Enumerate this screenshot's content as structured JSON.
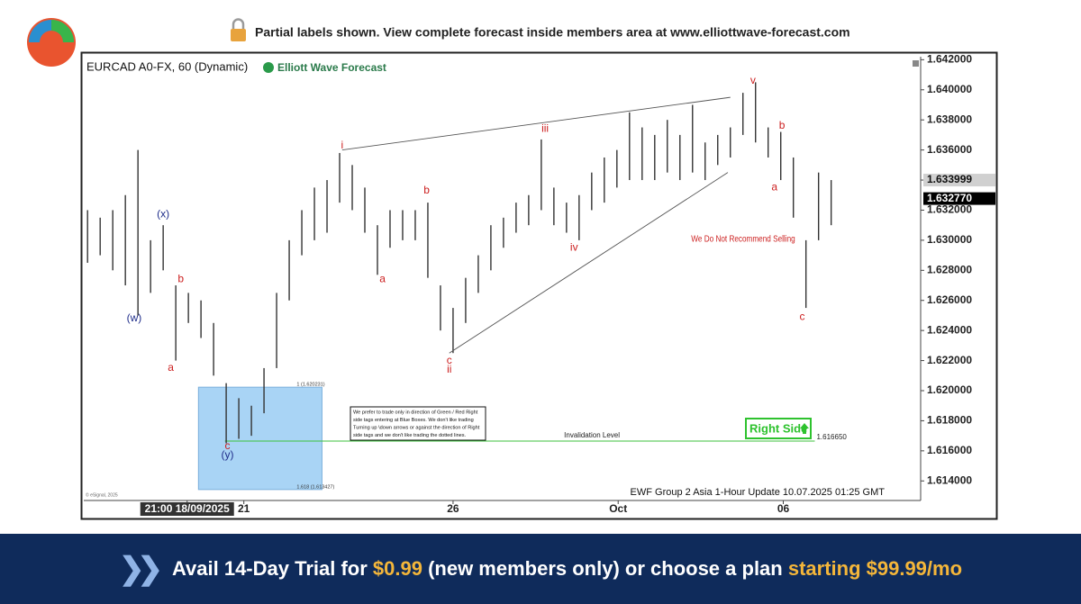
{
  "header": {
    "notice": "Partial labels shown. View complete forecast inside members area at www.elliottwave-forecast.com"
  },
  "chart_data": {
    "type": "hlbar",
    "title": "EURCAD A0-FX, 60 (Dynamic)",
    "brand": "Elliott Wave Forecast",
    "copyright": "© eSignal, 2025",
    "footer": "EWF Group 2 Asia 1-Hour Update 10.07.2025 01:25 GMT",
    "color": "#333333",
    "high": [
      1.632,
      1.6315,
      1.632,
      1.633,
      1.636,
      1.63,
      1.631,
      1.627,
      1.6265,
      1.626,
      1.6245,
      1.6205,
      1.6195,
      1.619,
      1.6215,
      1.6265,
      1.63,
      1.632,
      1.6335,
      1.634,
      1.6358,
      1.635,
      1.6335,
      1.631,
      1.632,
      1.632,
      1.632,
      1.6325,
      1.627,
      1.6255,
      1.6275,
      1.629,
      1.631,
      1.6315,
      1.6325,
      1.633,
      1.6367,
      1.6335,
      1.6325,
      1.633,
      1.6345,
      1.6355,
      1.636,
      1.6385,
      1.6375,
      1.637,
      1.638,
      1.637,
      1.639,
      1.6365,
      1.637,
      1.6375,
      1.6398,
      1.6405,
      1.6375,
      1.6372,
      1.6355,
      1.63,
      1.6345,
      1.634
    ],
    "low": [
      1.6285,
      1.629,
      1.628,
      1.627,
      1.625,
      1.6265,
      1.628,
      1.622,
      1.6245,
      1.6235,
      1.621,
      1.6165,
      1.6168,
      1.617,
      1.6185,
      1.6215,
      1.626,
      1.629,
      1.63,
      1.6305,
      1.6325,
      1.632,
      1.6305,
      1.6277,
      1.6295,
      1.63,
      1.63,
      1.6275,
      1.624,
      1.6225,
      1.6245,
      1.6265,
      1.628,
      1.6295,
      1.6305,
      1.631,
      1.632,
      1.631,
      1.6305,
      1.63,
      1.632,
      1.6325,
      1.6335,
      1.634,
      1.634,
      1.634,
      1.6345,
      1.634,
      1.6345,
      1.634,
      1.635,
      1.6355,
      1.637,
      1.6365,
      1.6355,
      1.634,
      1.6315,
      1.6255,
      1.63,
      1.631
    ],
    "xlim": [
      -0.3,
      66.1
    ],
    "xticks": [
      {
        "value": 7.9,
        "label": "21:00 18/09/2025"
      },
      {
        "value": 12.4,
        "label": "21"
      },
      {
        "value": 29,
        "label": "26"
      },
      {
        "value": 42.1,
        "label": "Oct"
      },
      {
        "value": 55.2,
        "label": "06"
      }
    ],
    "ylim": [
      1.6127,
      1.6422
    ],
    "yticks": [
      {
        "value": 1.642,
        "label": "1.642000"
      },
      {
        "value": 1.64,
        "label": "1.640000"
      },
      {
        "value": 1.638,
        "label": "1.638000"
      },
      {
        "value": 1.636,
        "label": "1.636000"
      },
      {
        "value": 1.634,
        "label": "1.634000"
      },
      {
        "value": 1.632,
        "label": "1.632000"
      },
      {
        "value": 1.63,
        "label": "1.630000"
      },
      {
        "value": 1.628,
        "label": "1.628000"
      },
      {
        "value": 1.626,
        "label": "1.626000"
      },
      {
        "value": 1.624,
        "label": "1.624000"
      },
      {
        "value": 1.622,
        "label": "1.622000"
      },
      {
        "value": 1.62,
        "label": "1.620000"
      },
      {
        "value": 1.618,
        "label": "1.618000"
      },
      {
        "value": 1.616,
        "label": "1.616000"
      },
      {
        "value": 1.614,
        "label": "1.614000"
      }
    ],
    "price_tags": [
      {
        "value": 1.633999,
        "label": "1.633999",
        "color": "#d0d0d0"
      },
      {
        "value": 1.63277,
        "label": "1.632770",
        "color": "#000000"
      }
    ],
    "annotations": [
      {
        "label": "(w)",
        "x": 3.7,
        "y": 1.6248,
        "color": "#1f2d8a"
      },
      {
        "label": "(x)",
        "x": 6,
        "y": 1.6317,
        "color": "#1f2d8a"
      },
      {
        "label": "a",
        "x": 6.6,
        "y": 1.6215,
        "color": "#cc1f1f"
      },
      {
        "label": "b",
        "x": 7.4,
        "y": 1.6274,
        "color": "#cc1f1f"
      },
      {
        "label": "c",
        "x": 11.1,
        "y": 1.6163,
        "color": "#cc1f1f"
      },
      {
        "label": "(y)",
        "x": 11.1,
        "y": 1.6157,
        "color": "#1f2d8a"
      },
      {
        "label": "i",
        "x": 20.2,
        "y": 1.6363,
        "color": "#cc1f1f"
      },
      {
        "label": "a",
        "x": 23.4,
        "y": 1.6274,
        "color": "#cc1f1f"
      },
      {
        "label": "b",
        "x": 26.9,
        "y": 1.6333,
        "color": "#cc1f1f"
      },
      {
        "label": "c",
        "x": 28.7,
        "y": 1.622,
        "color": "#cc1f1f"
      },
      {
        "label": "ii",
        "x": 28.7,
        "y": 1.6214,
        "color": "#cc1f1f"
      },
      {
        "label": "iii",
        "x": 36.3,
        "y": 1.6374,
        "color": "#cc1f1f"
      },
      {
        "label": "iv",
        "x": 38.6,
        "y": 1.6295,
        "color": "#cc1f1f"
      },
      {
        "label": "v",
        "x": 52.8,
        "y": 1.6406,
        "color": "#cc1f1f"
      },
      {
        "label": "a",
        "x": 54.5,
        "y": 1.6335,
        "color": "#cc1f1f"
      },
      {
        "label": "b",
        "x": 55.1,
        "y": 1.6376,
        "color": "#cc1f1f"
      },
      {
        "label": "c",
        "x": 56.7,
        "y": 1.6249,
        "color": "#cc1f1f"
      }
    ],
    "trendlines": [
      {
        "x": [
          20.2,
          51
        ],
        "y": [
          1.636,
          1.6395
        ]
      },
      {
        "x": [
          28.7,
          50.8
        ],
        "y": [
          1.6225,
          1.6345
        ]
      }
    ],
    "blue_box": {
      "x": [
        8.8,
        18.6
      ],
      "top": 1.620231,
      "bottom": 1.613427,
      "top_label": "1 (1.620231)",
      "bottom_label": "1.618 (1.613427)",
      "color": "#a9d4f5"
    },
    "invalidation": {
      "value": 1.61665,
      "label": "1.616650",
      "text": "Invalidation Level",
      "x": [
        10.9,
        57.7
      ],
      "color": "#3cc23c"
    },
    "warning": "We Do Not Recommend Selling",
    "right_side": "Right Side",
    "note": [
      "We prefer to trade only in direction of Green / Red Right",
      "side tags entering at Blue Boxes. We don't like trading",
      "Turning up \\down arrows or against the direction of Right",
      "side tags and we don't like trading the dotted lines."
    ]
  },
  "banner": {
    "a": "Avail 14-Day Trial for ",
    "b": "$0.99",
    "c": " (new members only) or choose a plan ",
    "d": "starting $99.99/mo"
  }
}
